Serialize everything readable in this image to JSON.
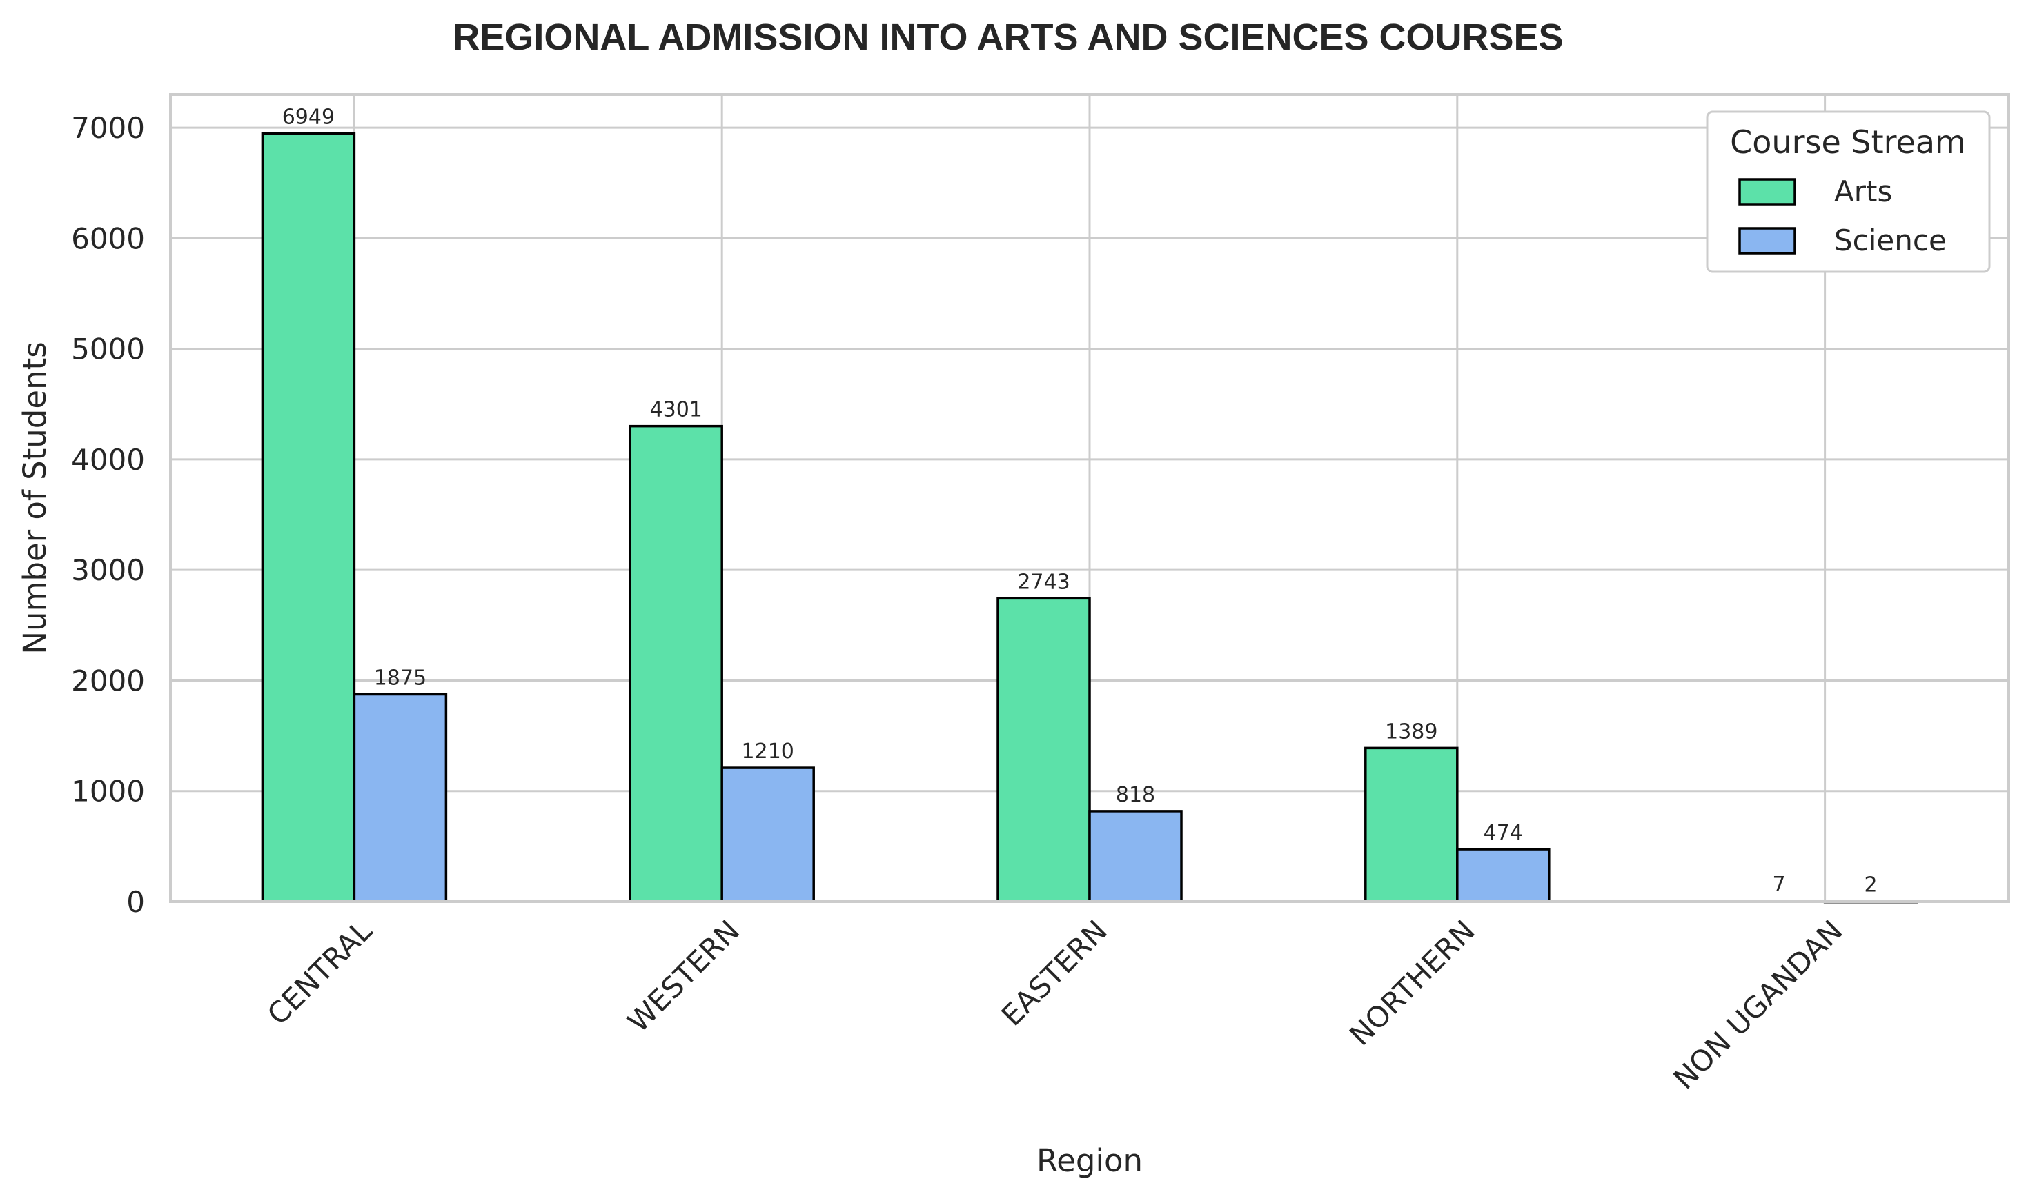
{
  "chart_data": {
    "type": "bar",
    "title": "REGIONAL ADMISSION INTO ARTS AND SCIENCES COURSES",
    "xlabel": "Region",
    "ylabel": "Number of Students",
    "categories": [
      "CENTRAL",
      "WESTERN",
      "EASTERN",
      "NORTHERN",
      "NON UGANDAN"
    ],
    "series": [
      {
        "name": "Arts",
        "values": [
          6949,
          4301,
          2743,
          1389,
          7
        ],
        "color": "#5ce1a9"
      },
      {
        "name": "Science",
        "values": [
          1875,
          1210,
          818,
          474,
          2
        ],
        "color": "#8ab6f1"
      }
    ],
    "ylim": [
      0,
      7300
    ],
    "yticks": [
      0,
      1000,
      2000,
      3000,
      4000,
      5000,
      6000,
      7000
    ],
    "grid": true,
    "legend": {
      "title": "Course Stream",
      "placement": "top-right"
    }
  }
}
